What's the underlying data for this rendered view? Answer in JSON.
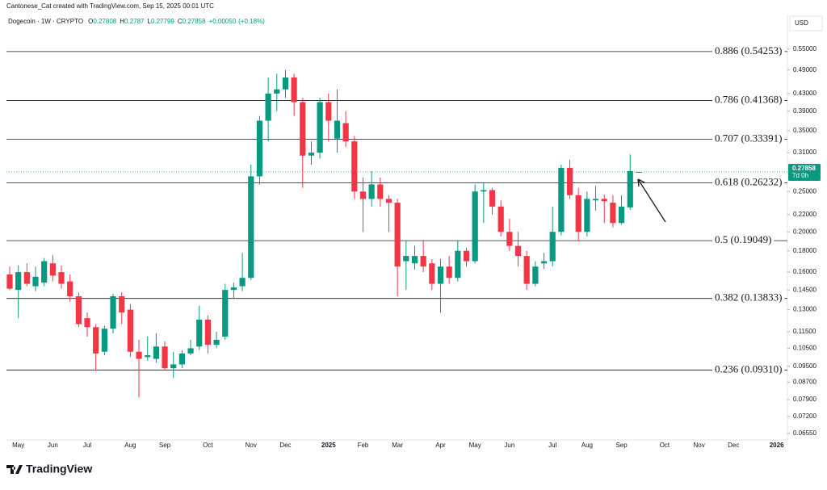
{
  "watermark": "Cantonese_Cat created with TradingView.com, Sep 15, 2025 00:01 UTC",
  "currency": "USD",
  "logo": "TradingView",
  "chart_data": {
    "type": "candlestick",
    "title": "Dogecoin · 1W · CRYPTO",
    "ohlc_labels": [
      "O",
      "H",
      "L",
      "C"
    ],
    "change": "+0.00050",
    "change_pct": "(+0.18%)",
    "countdown": "7d 0h",
    "log_scale": true,
    "up_color": "#089981",
    "down_color": "#f23645",
    "categories": [
      null,
      "May",
      null,
      null,
      null,
      "Jun",
      null,
      null,
      null,
      "Jul",
      null,
      null,
      null,
      null,
      "Aug",
      null,
      null,
      null,
      "Sep",
      null,
      null,
      null,
      null,
      "Oct",
      null,
      null,
      null,
      null,
      "Nov",
      null,
      null,
      null,
      "Dec",
      null,
      null,
      null,
      null,
      "2025",
      null,
      null,
      null,
      "Feb",
      null,
      null,
      null,
      "Mar",
      null,
      null,
      null,
      null,
      "Apr",
      null,
      null,
      null,
      "May",
      null,
      null,
      null,
      "Jun",
      null,
      null,
      null,
      null,
      "Jul",
      null,
      null,
      null,
      "Aug",
      null,
      null,
      null,
      "Sep",
      null,
      null,
      null,
      null,
      "Oct",
      null,
      null,
      null,
      "Nov",
      null,
      null,
      null,
      "Dec",
      null,
      null,
      null,
      null,
      "2026",
      null
    ],
    "open": [
      0.158,
      0.145,
      0.16,
      0.148,
      0.151,
      0.168,
      0.16,
      0.152,
      0.14,
      0.124,
      0.118,
      0.103,
      0.117,
      0.14,
      0.13,
      0.103,
      0.1,
      0.099,
      0.106,
      0.094,
      0.096,
      0.102,
      0.106,
      0.123,
      0.107,
      0.112,
      0.145,
      0.148,
      0.155,
      0.272,
      0.37,
      0.43,
      0.44,
      0.47,
      0.41,
      0.305,
      0.31,
      0.41,
      0.335,
      0.365,
      0.33,
      0.25,
      0.24,
      0.26,
      0.24,
      0.235,
      0.17,
      0.168,
      0.175,
      0.168,
      0.15,
      0.165,
      0.155,
      0.18,
      0.17,
      0.25,
      0.252,
      0.23,
      0.2,
      0.185,
      0.175,
      0.15,
      0.168,
      0.17,
      0.2,
      0.285,
      0.245,
      0.2,
      0.238,
      0.24,
      0.235,
      0.21,
      0.229,
      0.27808,
      null,
      null,
      null,
      null,
      null,
      null,
      null,
      null,
      null,
      null,
      null,
      null,
      null,
      null,
      null,
      null,
      null
    ],
    "high": [
      0.165,
      0.166,
      0.168,
      0.165,
      0.173,
      0.176,
      0.166,
      0.158,
      0.143,
      0.128,
      0.12,
      0.119,
      0.142,
      0.143,
      0.134,
      0.11,
      0.112,
      0.114,
      0.109,
      0.103,
      0.104,
      0.11,
      0.133,
      0.126,
      0.115,
      0.15,
      0.151,
      0.178,
      0.29,
      0.38,
      0.47,
      0.48,
      0.49,
      0.48,
      0.42,
      0.33,
      0.42,
      0.43,
      0.44,
      0.39,
      0.34,
      0.27,
      0.28,
      0.27,
      0.245,
      0.24,
      0.19,
      0.185,
      0.19,
      0.172,
      0.172,
      0.175,
      0.19,
      0.183,
      0.26,
      0.262,
      0.255,
      0.238,
      0.215,
      0.2,
      0.18,
      0.17,
      0.178,
      0.23,
      0.29,
      0.298,
      0.255,
      0.25,
      0.258,
      0.246,
      0.245,
      0.245,
      0.307,
      0.2787,
      null,
      null,
      null,
      null,
      null,
      null,
      null,
      null,
      null,
      null,
      null,
      null,
      null,
      null,
      null,
      null,
      null
    ],
    "low": [
      0.145,
      0.124,
      0.148,
      0.144,
      0.148,
      0.152,
      0.146,
      0.136,
      0.118,
      0.112,
      0.093,
      0.101,
      0.114,
      0.12,
      0.1,
      0.08,
      0.098,
      0.097,
      0.093,
      0.089,
      0.094,
      0.101,
      0.104,
      0.102,
      0.105,
      0.11,
      0.138,
      0.144,
      0.153,
      0.26,
      0.33,
      0.39,
      0.42,
      0.38,
      0.255,
      0.29,
      0.3,
      0.33,
      0.31,
      0.32,
      0.24,
      0.2,
      0.23,
      0.23,
      0.2,
      0.14,
      0.145,
      0.162,
      0.16,
      0.145,
      0.128,
      0.15,
      0.152,
      0.165,
      0.168,
      0.21,
      0.22,
      0.195,
      0.18,
      0.165,
      0.145,
      0.148,
      0.163,
      0.165,
      0.196,
      0.24,
      0.19,
      0.195,
      0.225,
      0.21,
      0.205,
      0.208,
      0.226,
      0.27799,
      null,
      null,
      null,
      null,
      null,
      null,
      null,
      null,
      null,
      null,
      null,
      null,
      null,
      null,
      null,
      null,
      null
    ],
    "close": [
      0.146,
      0.16,
      0.15,
      0.156,
      0.17,
      0.157,
      0.15,
      0.14,
      0.12,
      0.118,
      0.102,
      0.117,
      0.14,
      0.128,
      0.103,
      0.099,
      0.101,
      0.106,
      0.094,
      0.096,
      0.102,
      0.105,
      0.123,
      0.107,
      0.11,
      0.145,
      0.147,
      0.155,
      0.272,
      0.37,
      0.43,
      0.44,
      0.47,
      0.41,
      0.305,
      0.31,
      0.41,
      0.37,
      0.37,
      0.33,
      0.25,
      0.24,
      0.26,
      0.24,
      0.235,
      0.165,
      0.175,
      0.175,
      0.165,
      0.15,
      0.165,
      0.155,
      0.18,
      0.17,
      0.25,
      0.252,
      0.23,
      0.2,
      0.185,
      0.175,
      0.15,
      0.165,
      0.17,
      0.2,
      0.285,
      0.245,
      0.2,
      0.24,
      0.24,
      0.237,
      0.21,
      0.23,
      0.28,
      0.27858,
      null,
      null,
      null,
      null,
      null,
      null,
      null,
      null,
      null,
      null,
      null,
      null,
      null,
      null,
      null,
      null,
      null
    ],
    "ylim": [
      0.0632,
      0.66
    ],
    "yticks": [
      {
        "value": 0.55,
        "label": "0.55000"
      },
      {
        "value": 0.49,
        "label": "0.49000"
      },
      {
        "value": 0.43,
        "label": "0.43000"
      },
      {
        "value": 0.39,
        "label": "0.39000"
      },
      {
        "value": 0.35,
        "label": "0.35000"
      },
      {
        "value": 0.31,
        "label": "0.31000"
      },
      {
        "value": 0.25,
        "label": "0.25000"
      },
      {
        "value": 0.22,
        "label": "0.22000"
      },
      {
        "value": 0.2,
        "label": "0.20000"
      },
      {
        "value": 0.18,
        "label": "0.18000"
      },
      {
        "value": 0.16,
        "label": "0.16000"
      },
      {
        "value": 0.145,
        "label": "0.14500"
      },
      {
        "value": 0.13,
        "label": "0.13000"
      },
      {
        "value": 0.115,
        "label": "0.11500"
      },
      {
        "value": 0.105,
        "label": "0.10500"
      },
      {
        "value": 0.095,
        "label": "0.09500"
      },
      {
        "value": 0.087,
        "label": "0.08700"
      },
      {
        "value": 0.079,
        "label": "0.07900"
      },
      {
        "value": 0.072,
        "label": "0.07200"
      },
      {
        "value": 0.0655,
        "label": "0.06550"
      }
    ],
    "fib_levels": [
      {
        "value": 0.54253,
        "label": "0.886 (0.54253)"
      },
      {
        "value": 0.41368,
        "label": "0.786 (0.41368)"
      },
      {
        "value": 0.33391,
        "label": "0.707 (0.33391)"
      },
      {
        "value": 0.26232,
        "label": "0.618 (0.26232)"
      },
      {
        "value": 0.19049,
        "label": "0.5 (0.19049)"
      },
      {
        "value": 0.13833,
        "label": "0.382 (0.13833)"
      },
      {
        "value": 0.0931,
        "label": "0.236 (0.09310)"
      }
    ]
  }
}
